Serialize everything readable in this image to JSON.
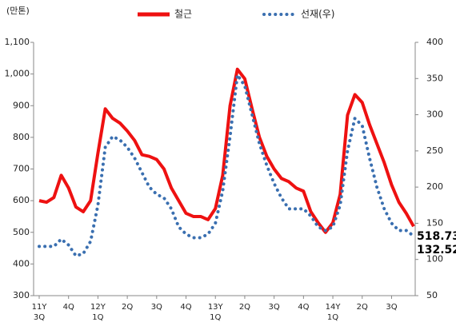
{
  "chart_data": {
    "type": "line",
    "y_label": "(만톤)",
    "categories": [
      "11Y\n3Q",
      null,
      null,
      null,
      "4Q",
      null,
      null,
      null,
      "12Y\n1Q",
      null,
      null,
      null,
      "2Q",
      null,
      null,
      null,
      "3Q",
      null,
      null,
      null,
      "4Q",
      null,
      null,
      null,
      "13Y\n1Q",
      null,
      null,
      null,
      "2Q",
      null,
      null,
      null,
      "3Q",
      null,
      null,
      null,
      "4Q",
      null,
      null,
      null,
      "14Y\n1Q",
      null,
      null,
      null,
      "2Q",
      null,
      null,
      null,
      "3Q",
      null,
      null,
      null
    ],
    "series": [
      {
        "name": "철근",
        "color": "#ee1111",
        "axis": "y",
        "values": [
          600,
          595,
          610,
          680,
          640,
          580,
          565,
          600,
          750,
          890,
          860,
          845,
          820,
          790,
          745,
          740,
          730,
          700,
          640,
          600,
          560,
          550,
          550,
          540,
          575,
          680,
          900,
          1015,
          985,
          890,
          800,
          740,
          700,
          670,
          660,
          640,
          630,
          565,
          530,
          500,
          530,
          620,
          870,
          935,
          910,
          840,
          780,
          720,
          650,
          595,
          560,
          518.73
        ]
      },
      {
        "name": "선재(우)",
        "color": "#3a6fb0",
        "axis": "y2",
        "values": [
          118,
          118,
          118,
          128,
          120,
          105,
          108,
          125,
          175,
          255,
          270,
          265,
          255,
          240,
          220,
          200,
          190,
          185,
          170,
          145,
          135,
          130,
          130,
          135,
          150,
          195,
          270,
          355,
          340,
          300,
          260,
          230,
          205,
          185,
          170,
          170,
          170,
          160,
          145,
          140,
          145,
          175,
          250,
          295,
          285,
          240,
          200,
          170,
          150,
          140,
          140,
          132.52
        ]
      }
    ],
    "ylim": [
      300,
      1100
    ],
    "yticks": [
      300,
      400,
      500,
      600,
      700,
      800,
      900,
      {
        "value": 1000,
        "label": "1,000"
      },
      {
        "value": 1100,
        "label": "1,100"
      }
    ],
    "y2lim": [
      50,
      400
    ],
    "y2ticks": [
      50,
      100,
      150,
      200,
      250,
      300,
      350,
      400
    ],
    "grid": false,
    "legend": "top"
  }
}
